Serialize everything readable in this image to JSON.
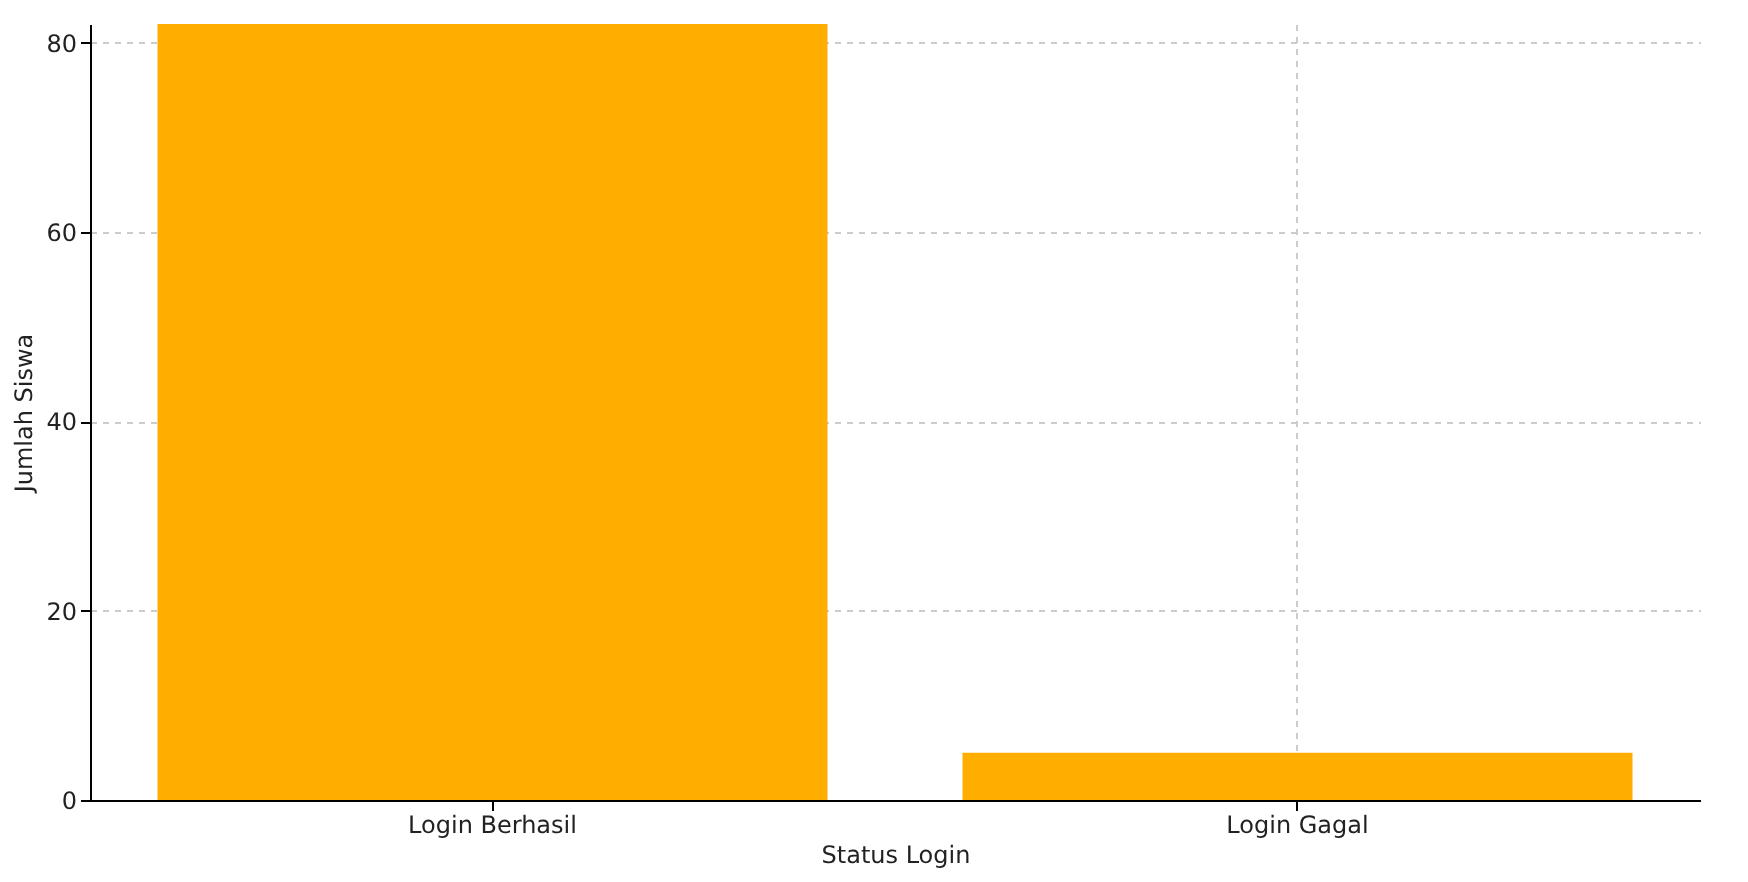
{
  "chart_data": {
    "type": "bar",
    "xlabel": "Status Login",
    "ylabel": "Jumlah Siswa",
    "categories": [
      "Login Berhasil",
      "Login Gagal"
    ],
    "values": [
      82,
      5
    ],
    "color": "#ffae00",
    "ylim": [
      0,
      82
    ],
    "yticks": [
      0,
      20,
      40,
      60,
      80
    ],
    "grid": true
  }
}
